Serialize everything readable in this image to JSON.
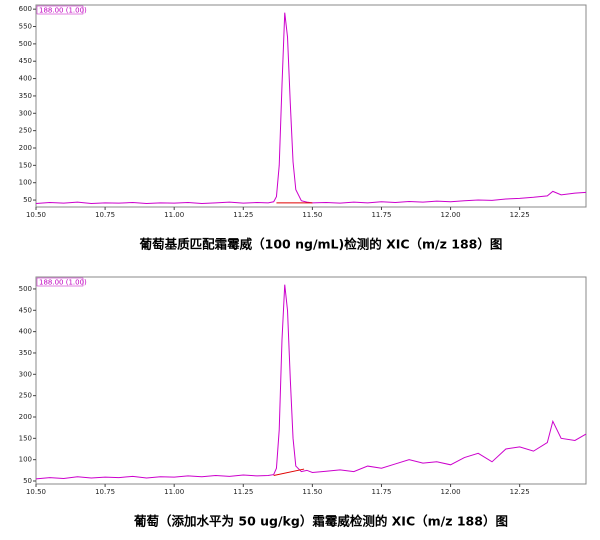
{
  "chart_data": [
    {
      "type": "line",
      "caption": "葡萄基质匹配霜霉威（100 ng/mL)检测的 XIC（m/z 188）图",
      "annotation": "188.00 (1.00)",
      "xlim": [
        10.5,
        12.49
      ],
      "ylim": [
        30,
        612
      ],
      "xticks": [
        {
          "value": 10.5,
          "label": "10.50"
        },
        {
          "value": 10.75,
          "label": "10.75"
        },
        {
          "value": 11.0,
          "label": "11.00"
        },
        {
          "value": 11.25,
          "label": "11.25"
        },
        {
          "value": 11.5,
          "label": "11.50"
        },
        {
          "value": 11.75,
          "label": "11.75"
        },
        {
          "value": 12.0,
          "label": "12.00"
        },
        {
          "value": 12.25,
          "label": "12.25"
        }
      ],
      "yticks": [
        50,
        100,
        150,
        200,
        250,
        300,
        350,
        400,
        450,
        500,
        550,
        600
      ],
      "series": [
        {
          "color": "#cc00cc",
          "x": [
            10.5,
            10.55,
            10.6,
            10.65,
            10.7,
            10.75,
            10.8,
            10.85,
            10.9,
            10.95,
            11.0,
            11.05,
            11.1,
            11.15,
            11.2,
            11.25,
            11.3,
            11.34,
            11.36,
            11.37,
            11.38,
            11.39,
            11.4,
            11.41,
            11.42,
            11.43,
            11.44,
            11.46,
            11.48,
            11.5,
            11.55,
            11.6,
            11.65,
            11.7,
            11.75,
            11.8,
            11.85,
            11.9,
            11.95,
            12.0,
            12.05,
            12.1,
            12.15,
            12.2,
            12.25,
            12.3,
            12.35,
            12.37,
            12.4,
            12.45,
            12.49
          ],
          "values": [
            40,
            43,
            41,
            44,
            40,
            42,
            41,
            43,
            40,
            42,
            41,
            43,
            40,
            42,
            44,
            41,
            43,
            42,
            45,
            60,
            150,
            380,
            590,
            520,
            330,
            160,
            80,
            48,
            44,
            42,
            43,
            41,
            44,
            42,
            45,
            43,
            46,
            44,
            47,
            45,
            48,
            50,
            49,
            53,
            55,
            58,
            62,
            75,
            65,
            70,
            72
          ]
        },
        {
          "color": "#e00000",
          "x": [
            11.37,
            11.5
          ],
          "values": [
            42,
            42
          ]
        }
      ]
    },
    {
      "type": "line",
      "caption": "葡萄（添加水平为 50 ug/kg）霜霉威检测的 XIC（m/z 188）图",
      "annotation": "188.00 (1.00)",
      "xlim": [
        10.5,
        12.49
      ],
      "ylim": [
        43,
        528
      ],
      "xticks": [
        {
          "value": 10.5,
          "label": "10.50"
        },
        {
          "value": 10.75,
          "label": "10.75"
        },
        {
          "value": 11.0,
          "label": "11.00"
        },
        {
          "value": 11.25,
          "label": "11.25"
        },
        {
          "value": 11.5,
          "label": "11.50"
        },
        {
          "value": 11.75,
          "label": "11.75"
        },
        {
          "value": 12.0,
          "label": "12.00"
        },
        {
          "value": 12.25,
          "label": "12.25"
        }
      ],
      "yticks": [
        50,
        100,
        150,
        200,
        250,
        300,
        350,
        400,
        450,
        500
      ],
      "series": [
        {
          "color": "#cc00cc",
          "x": [
            10.5,
            10.55,
            10.6,
            10.65,
            10.7,
            10.75,
            10.8,
            10.85,
            10.9,
            10.95,
            11.0,
            11.05,
            11.1,
            11.15,
            11.2,
            11.25,
            11.3,
            11.34,
            11.36,
            11.37,
            11.38,
            11.39,
            11.4,
            11.41,
            11.42,
            11.43,
            11.44,
            11.46,
            11.48,
            11.5,
            11.55,
            11.6,
            11.65,
            11.7,
            11.75,
            11.8,
            11.85,
            11.9,
            11.95,
            12.0,
            12.05,
            12.1,
            12.15,
            12.2,
            12.25,
            12.3,
            12.35,
            12.37,
            12.4,
            12.45,
            12.49
          ],
          "values": [
            55,
            58,
            56,
            60,
            57,
            59,
            58,
            61,
            57,
            60,
            59,
            62,
            60,
            63,
            61,
            64,
            62,
            63,
            65,
            80,
            170,
            380,
            510,
            450,
            290,
            150,
            85,
            72,
            75,
            70,
            73,
            76,
            72,
            85,
            80,
            90,
            100,
            92,
            95,
            88,
            105,
            115,
            95,
            125,
            130,
            120,
            140,
            190,
            150,
            145,
            160
          ]
        },
        {
          "color": "#e00000",
          "x": [
            11.36,
            11.47
          ],
          "values": [
            63,
            78
          ]
        }
      ]
    }
  ]
}
